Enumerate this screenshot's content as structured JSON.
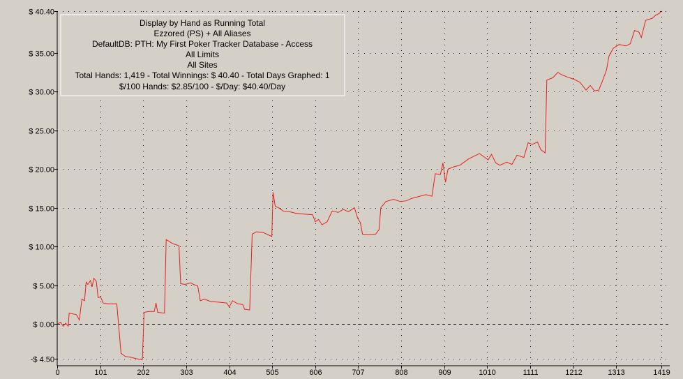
{
  "info_box": {
    "lines": [
      "Display by Hand as Running Total",
      "Ezzored (PS) + All Aliases",
      "DefaultDB: PTH: My First Poker Tracker Database - Access",
      "All Limits",
      "All Sites",
      "Total Hands: 1,419 - Total Winnings: $ 40.40 - Total Days Graphed: 1",
      "$/100 Hands: $2.85/100 - $/Day: $40.40/Day"
    ]
  },
  "colors": {
    "background": "#d4d0c8",
    "line": "#e8201a",
    "grid": "#000000",
    "box_border": "#ffffff"
  },
  "chart_data": {
    "type": "line",
    "title": "",
    "xlabel": "",
    "ylabel": "",
    "xlim": [
      0,
      1419
    ],
    "ylim": [
      -4.5,
      40.4
    ],
    "grid": true,
    "x_ticks": [
      0,
      101,
      202,
      303,
      404,
      505,
      606,
      707,
      808,
      909,
      1010,
      1111,
      1212,
      1313,
      1419
    ],
    "x_tick_labels": [
      "0",
      "101",
      "202",
      "303",
      "404",
      "505",
      "606",
      "707",
      "808",
      "909",
      "1010",
      "1111",
      "1212",
      "1313",
      "1419"
    ],
    "y_ticks": [
      -4.5,
      0,
      5,
      10,
      15,
      20,
      25,
      30,
      35,
      40.4
    ],
    "y_tick_labels": [
      "-$ 4.50",
      "$ 0.00",
      "$ 5.00",
      "$ 10.00",
      "$ 15.00",
      "$ 20.00",
      "$ 25.00",
      "$ 30.00",
      "$ 35.00",
      "$ 40.40"
    ],
    "series": [
      {
        "values": [
          [
            0,
            0
          ],
          [
            8,
            0.2
          ],
          [
            14,
            -0.3
          ],
          [
            20,
            0.1
          ],
          [
            26,
            -0.3
          ],
          [
            28,
            1.4
          ],
          [
            45,
            1.2
          ],
          [
            52,
            0.5
          ],
          [
            58,
            3.2
          ],
          [
            64,
            3.0
          ],
          [
            68,
            5.4
          ],
          [
            72,
            5.1
          ],
          [
            78,
            5.6
          ],
          [
            82,
            4.8
          ],
          [
            86,
            5.9
          ],
          [
            92,
            5.5
          ],
          [
            96,
            3.4
          ],
          [
            102,
            3.5
          ],
          [
            108,
            2.7
          ],
          [
            118,
            2.6
          ],
          [
            140,
            2.6
          ],
          [
            150,
            -3.8
          ],
          [
            160,
            -4.2
          ],
          [
            172,
            -4.3
          ],
          [
            186,
            -4.5
          ],
          [
            200,
            -4.6
          ],
          [
            204,
            1.5
          ],
          [
            216,
            1.6
          ],
          [
            228,
            1.6
          ],
          [
            232,
            2.7
          ],
          [
            236,
            1.5
          ],
          [
            252,
            1.4
          ],
          [
            256,
            10.9
          ],
          [
            262,
            10.7
          ],
          [
            270,
            10.4
          ],
          [
            286,
            10.1
          ],
          [
            290,
            5.2
          ],
          [
            300,
            5.1
          ],
          [
            314,
            5.3
          ],
          [
            320,
            5.1
          ],
          [
            330,
            4.9
          ],
          [
            336,
            3.0
          ],
          [
            346,
            3.2
          ],
          [
            360,
            2.9
          ],
          [
            380,
            2.8
          ],
          [
            398,
            2.7
          ],
          [
            404,
            2.2
          ],
          [
            412,
            3.0
          ],
          [
            424,
            2.6
          ],
          [
            436,
            2.5
          ],
          [
            440,
            1.9
          ],
          [
            452,
            1.8
          ],
          [
            458,
            11.6
          ],
          [
            468,
            11.9
          ],
          [
            484,
            11.8
          ],
          [
            496,
            11.5
          ],
          [
            504,
            11.3
          ],
          [
            507,
            17.0
          ],
          [
            512,
            15.2
          ],
          [
            520,
            15.0
          ],
          [
            530,
            14.6
          ],
          [
            545,
            14.5
          ],
          [
            560,
            14.3
          ],
          [
            578,
            14.2
          ],
          [
            600,
            14.1
          ],
          [
            606,
            13.2
          ],
          [
            614,
            13.5
          ],
          [
            622,
            12.8
          ],
          [
            634,
            13.2
          ],
          [
            646,
            14.6
          ],
          [
            660,
            14.4
          ],
          [
            672,
            14.8
          ],
          [
            684,
            14.5
          ],
          [
            698,
            15.0
          ],
          [
            706,
            13.6
          ],
          [
            712,
            13.1
          ],
          [
            717,
            11.6
          ],
          [
            730,
            11.5
          ],
          [
            748,
            11.6
          ],
          [
            756,
            12.2
          ],
          [
            760,
            15.0
          ],
          [
            772,
            15.8
          ],
          [
            790,
            16.1
          ],
          [
            806,
            15.8
          ],
          [
            820,
            15.9
          ],
          [
            832,
            16.2
          ],
          [
            852,
            16.5
          ],
          [
            866,
            16.7
          ],
          [
            880,
            16.5
          ],
          [
            888,
            19.4
          ],
          [
            900,
            19.3
          ],
          [
            906,
            20.8
          ],
          [
            912,
            18.3
          ],
          [
            918,
            20.0
          ],
          [
            932,
            20.3
          ],
          [
            946,
            20.5
          ],
          [
            956,
            20.9
          ],
          [
            966,
            21.3
          ],
          [
            980,
            21.7
          ],
          [
            992,
            22.0
          ],
          [
            1002,
            21.6
          ],
          [
            1012,
            21.2
          ],
          [
            1020,
            21.9
          ],
          [
            1030,
            20.8
          ],
          [
            1040,
            20.5
          ],
          [
            1056,
            20.9
          ],
          [
            1068,
            20.6
          ],
          [
            1080,
            21.8
          ],
          [
            1096,
            21.5
          ],
          [
            1106,
            23.4
          ],
          [
            1116,
            23.2
          ],
          [
            1128,
            23.5
          ],
          [
            1136,
            22.5
          ],
          [
            1146,
            22.1
          ],
          [
            1150,
            31.5
          ],
          [
            1164,
            31.8
          ],
          [
            1176,
            32.5
          ],
          [
            1184,
            32.2
          ],
          [
            1198,
            31.9
          ],
          [
            1214,
            31.6
          ],
          [
            1228,
            31.2
          ],
          [
            1242,
            30.2
          ],
          [
            1252,
            30.8
          ],
          [
            1262,
            30.1
          ],
          [
            1272,
            30.2
          ],
          [
            1280,
            31.3
          ],
          [
            1290,
            32.8
          ],
          [
            1296,
            34.6
          ],
          [
            1306,
            35.6
          ],
          [
            1320,
            36.1
          ],
          [
            1336,
            35.9
          ],
          [
            1346,
            36.2
          ],
          [
            1356,
            37.9
          ],
          [
            1366,
            37.7
          ],
          [
            1372,
            37.0
          ],
          [
            1382,
            39.2
          ],
          [
            1398,
            39.5
          ],
          [
            1406,
            39.9
          ],
          [
            1414,
            40.1
          ],
          [
            1419,
            40.4
          ]
        ]
      }
    ]
  }
}
